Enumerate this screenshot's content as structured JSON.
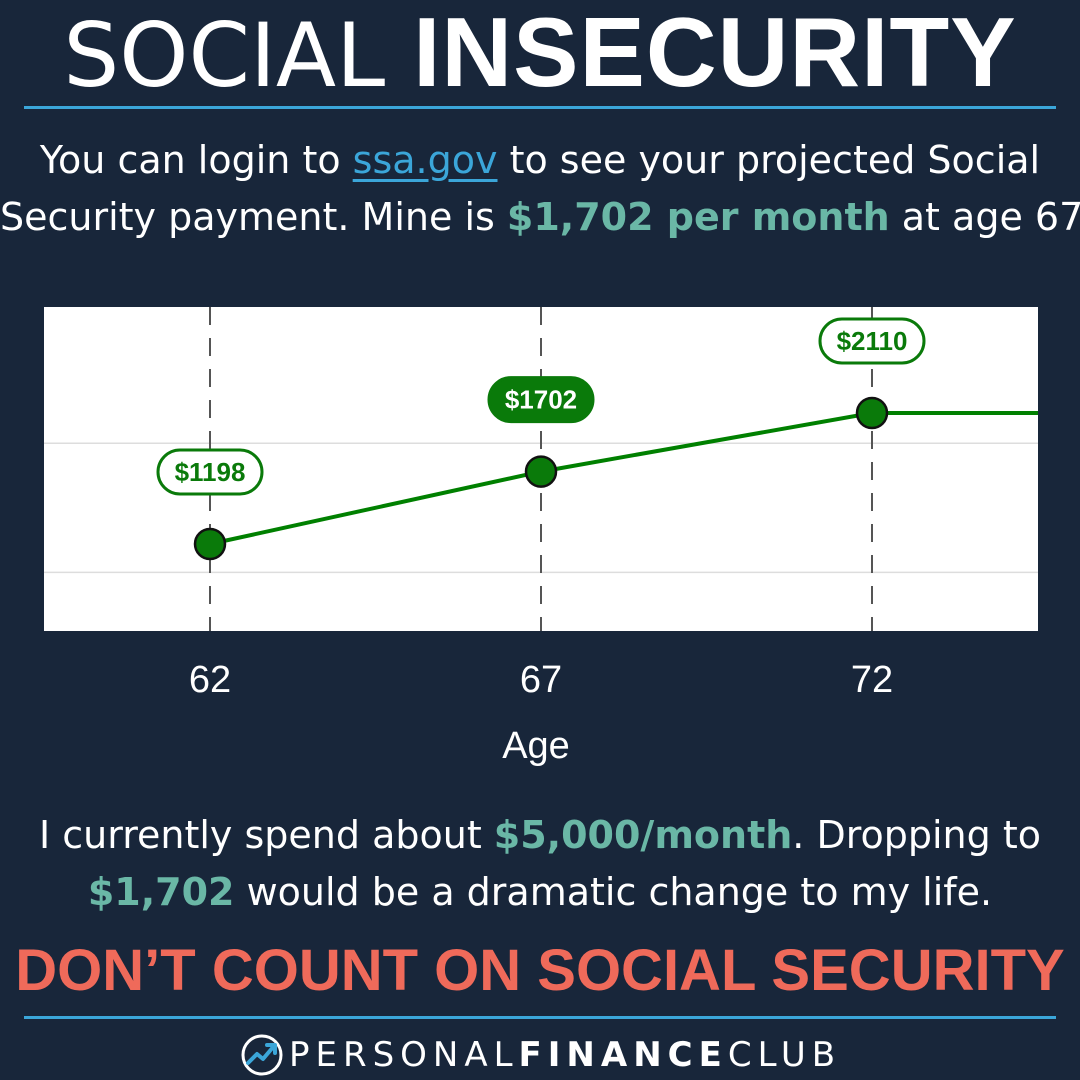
{
  "title": {
    "light": "SOCIAL",
    "bold": "INSECURITY"
  },
  "intro": {
    "before_link": "You can login to ",
    "link": "ssa.gov",
    "after_link": " to see your projected Social",
    "line2_before": "Security payment. Mine is ",
    "line2_highlight": "$1,702 per month",
    "line2_after": " at age 67."
  },
  "chart_data": {
    "type": "line",
    "x": [
      62,
      67,
      72
    ],
    "xlabel": "Age",
    "ylabel": "",
    "series": [
      {
        "values": [
          1198,
          1702,
          2110
        ],
        "labels": [
          "$1198",
          "$1702",
          "$2110"
        ]
      }
    ],
    "highlighted_point": 67,
    "extends_after_last": true,
    "grid": true,
    "colors": {
      "line": "#008000",
      "point": "#0a7a0a",
      "label_fill_highlight": "#0a7a0a",
      "label_fill": "#ffffff"
    }
  },
  "bottom": {
    "line1_before": "I currently spend about ",
    "line1_highlight": "$5,000/month",
    "line1_after": ". Dropping to",
    "line2_highlight": "$1,702",
    "line2_after": " would be a dramatic change to my life."
  },
  "warning": "DON’T COUNT ON SOCIAL SECURITY",
  "footer": {
    "light_1": "PERSONAL",
    "bold": "FINANCE",
    "light_2": "CLUB",
    "icon": "trend-up-logo-icon"
  },
  "colors": {
    "background": "#18263a",
    "accent_blue": "#3ba6d9",
    "highlight_teal": "#6ab7a6",
    "warning_red": "#ef6a5a"
  }
}
